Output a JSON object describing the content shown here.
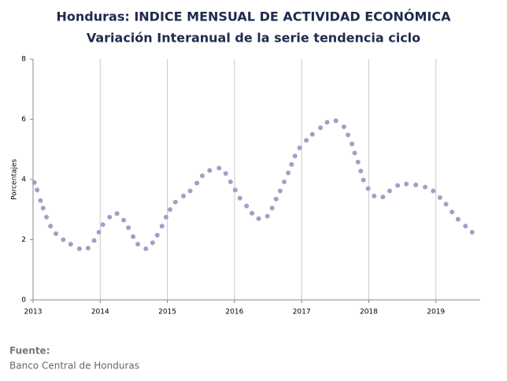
{
  "chart_data": {
    "type": "scatter",
    "title": "Honduras: INDICE MENSUAL DE ACTIVIDAD ECONÓMICA",
    "subtitle": "Variación Interanual de la serie tendencia ciclo",
    "y_label": "Porcentajes",
    "source_label": "Fuente:",
    "source": "Banco Central de Honduras",
    "color": "#a99bc9",
    "x": [
      2013.02,
      2013.06,
      2013.11,
      2013.15,
      2013.2,
      2013.26,
      2013.34,
      2013.45,
      2013.56,
      2013.69,
      2013.82,
      2013.91,
      2013.98,
      2014.04,
      2014.14,
      2014.25,
      2014.35,
      2014.42,
      2014.49,
      2014.56,
      2014.68,
      2014.78,
      2014.85,
      2014.92,
      2014.98,
      2015.04,
      2015.12,
      2015.24,
      2015.34,
      2015.44,
      2015.52,
      2015.63,
      2015.77,
      2015.87,
      2015.94,
      2016.01,
      2016.08,
      2016.18,
      2016.26,
      2016.36,
      2016.49,
      2016.56,
      2016.62,
      2016.68,
      2016.74,
      2016.8,
      2016.85,
      2016.9,
      2016.97,
      2017.07,
      2017.16,
      2017.28,
      2017.38,
      2017.51,
      2017.63,
      2017.69,
      2017.75,
      2017.79,
      2017.84,
      2017.88,
      2017.92,
      2017.99,
      2018.08,
      2018.21,
      2018.31,
      2018.43,
      2018.56,
      2018.7,
      2018.84,
      2018.96,
      2019.06,
      2019.15,
      2019.24,
      2019.33,
      2019.44,
      2019.54
    ],
    "values": [
      3.9,
      3.65,
      3.3,
      3.05,
      2.75,
      2.45,
      2.2,
      2.0,
      1.85,
      1.7,
      1.72,
      1.97,
      2.25,
      2.5,
      2.75,
      2.87,
      2.65,
      2.4,
      2.1,
      1.85,
      1.7,
      1.9,
      2.15,
      2.45,
      2.75,
      3.0,
      3.25,
      3.45,
      3.62,
      3.88,
      4.12,
      4.3,
      4.38,
      4.2,
      3.92,
      3.65,
      3.38,
      3.12,
      2.88,
      2.7,
      2.78,
      3.05,
      3.35,
      3.62,
      3.92,
      4.22,
      4.5,
      4.78,
      5.05,
      5.3,
      5.5,
      5.72,
      5.9,
      5.95,
      5.75,
      5.48,
      5.18,
      4.88,
      4.58,
      4.28,
      3.98,
      3.7,
      3.45,
      3.42,
      3.62,
      3.8,
      3.85,
      3.82,
      3.75,
      3.62,
      3.4,
      3.18,
      2.92,
      2.68,
      2.45,
      2.25
    ],
    "xlim": [
      2013,
      2019.66
    ],
    "xticks": [
      2013,
      2014,
      2015,
      2016,
      2017,
      2018,
      2019
    ],
    "ylim": [
      0,
      8
    ],
    "yticks": [
      0,
      2,
      4,
      6,
      8
    ],
    "grid": "x"
  }
}
